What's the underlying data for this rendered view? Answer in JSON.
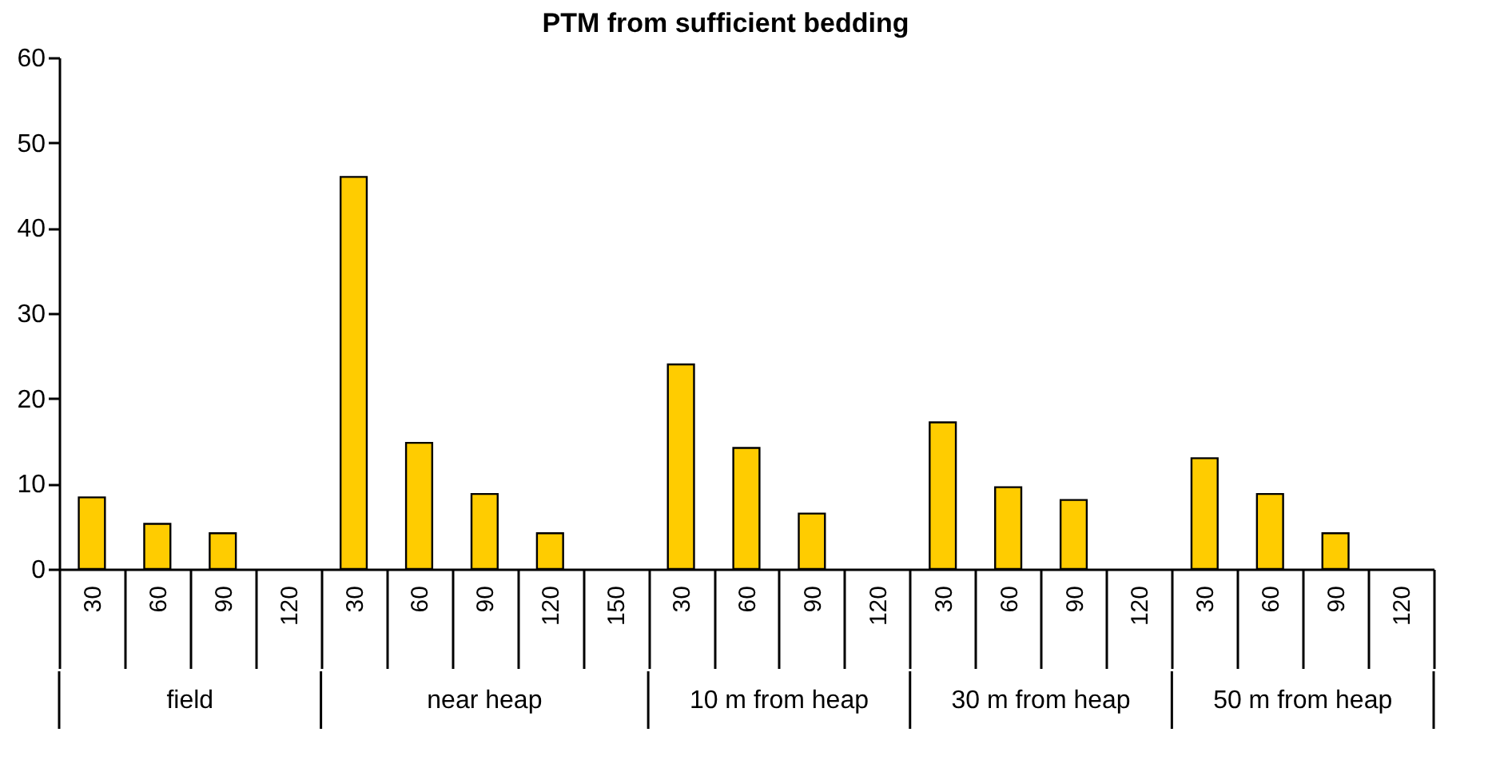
{
  "chart_data": {
    "type": "bar",
    "title": "PTM from sufficient bedding",
    "categories": [
      "30",
      "60",
      "90",
      "120",
      "30",
      "60",
      "90",
      "120",
      "150",
      "30",
      "60",
      "90",
      "120",
      "30",
      "60",
      "90",
      "120",
      "30",
      "60",
      "90",
      "120"
    ],
    "values": [
      8.4,
      5.3,
      4.2,
      null,
      46,
      14.8,
      8.8,
      4.2,
      null,
      24,
      14.2,
      6.5,
      null,
      17.2,
      9.6,
      8.1,
      null,
      13,
      8.8,
      4.2,
      null
    ],
    "color": "#ffcc00",
    "annotations": [
      "field",
      "near heap",
      "10 m from heap",
      "30 m from heap",
      "50 m from heap"
    ],
    "ylim": [
      0,
      60
    ],
    "yticks": [
      0,
      10,
      20,
      30,
      40,
      50,
      60
    ],
    "grid": false
  }
}
